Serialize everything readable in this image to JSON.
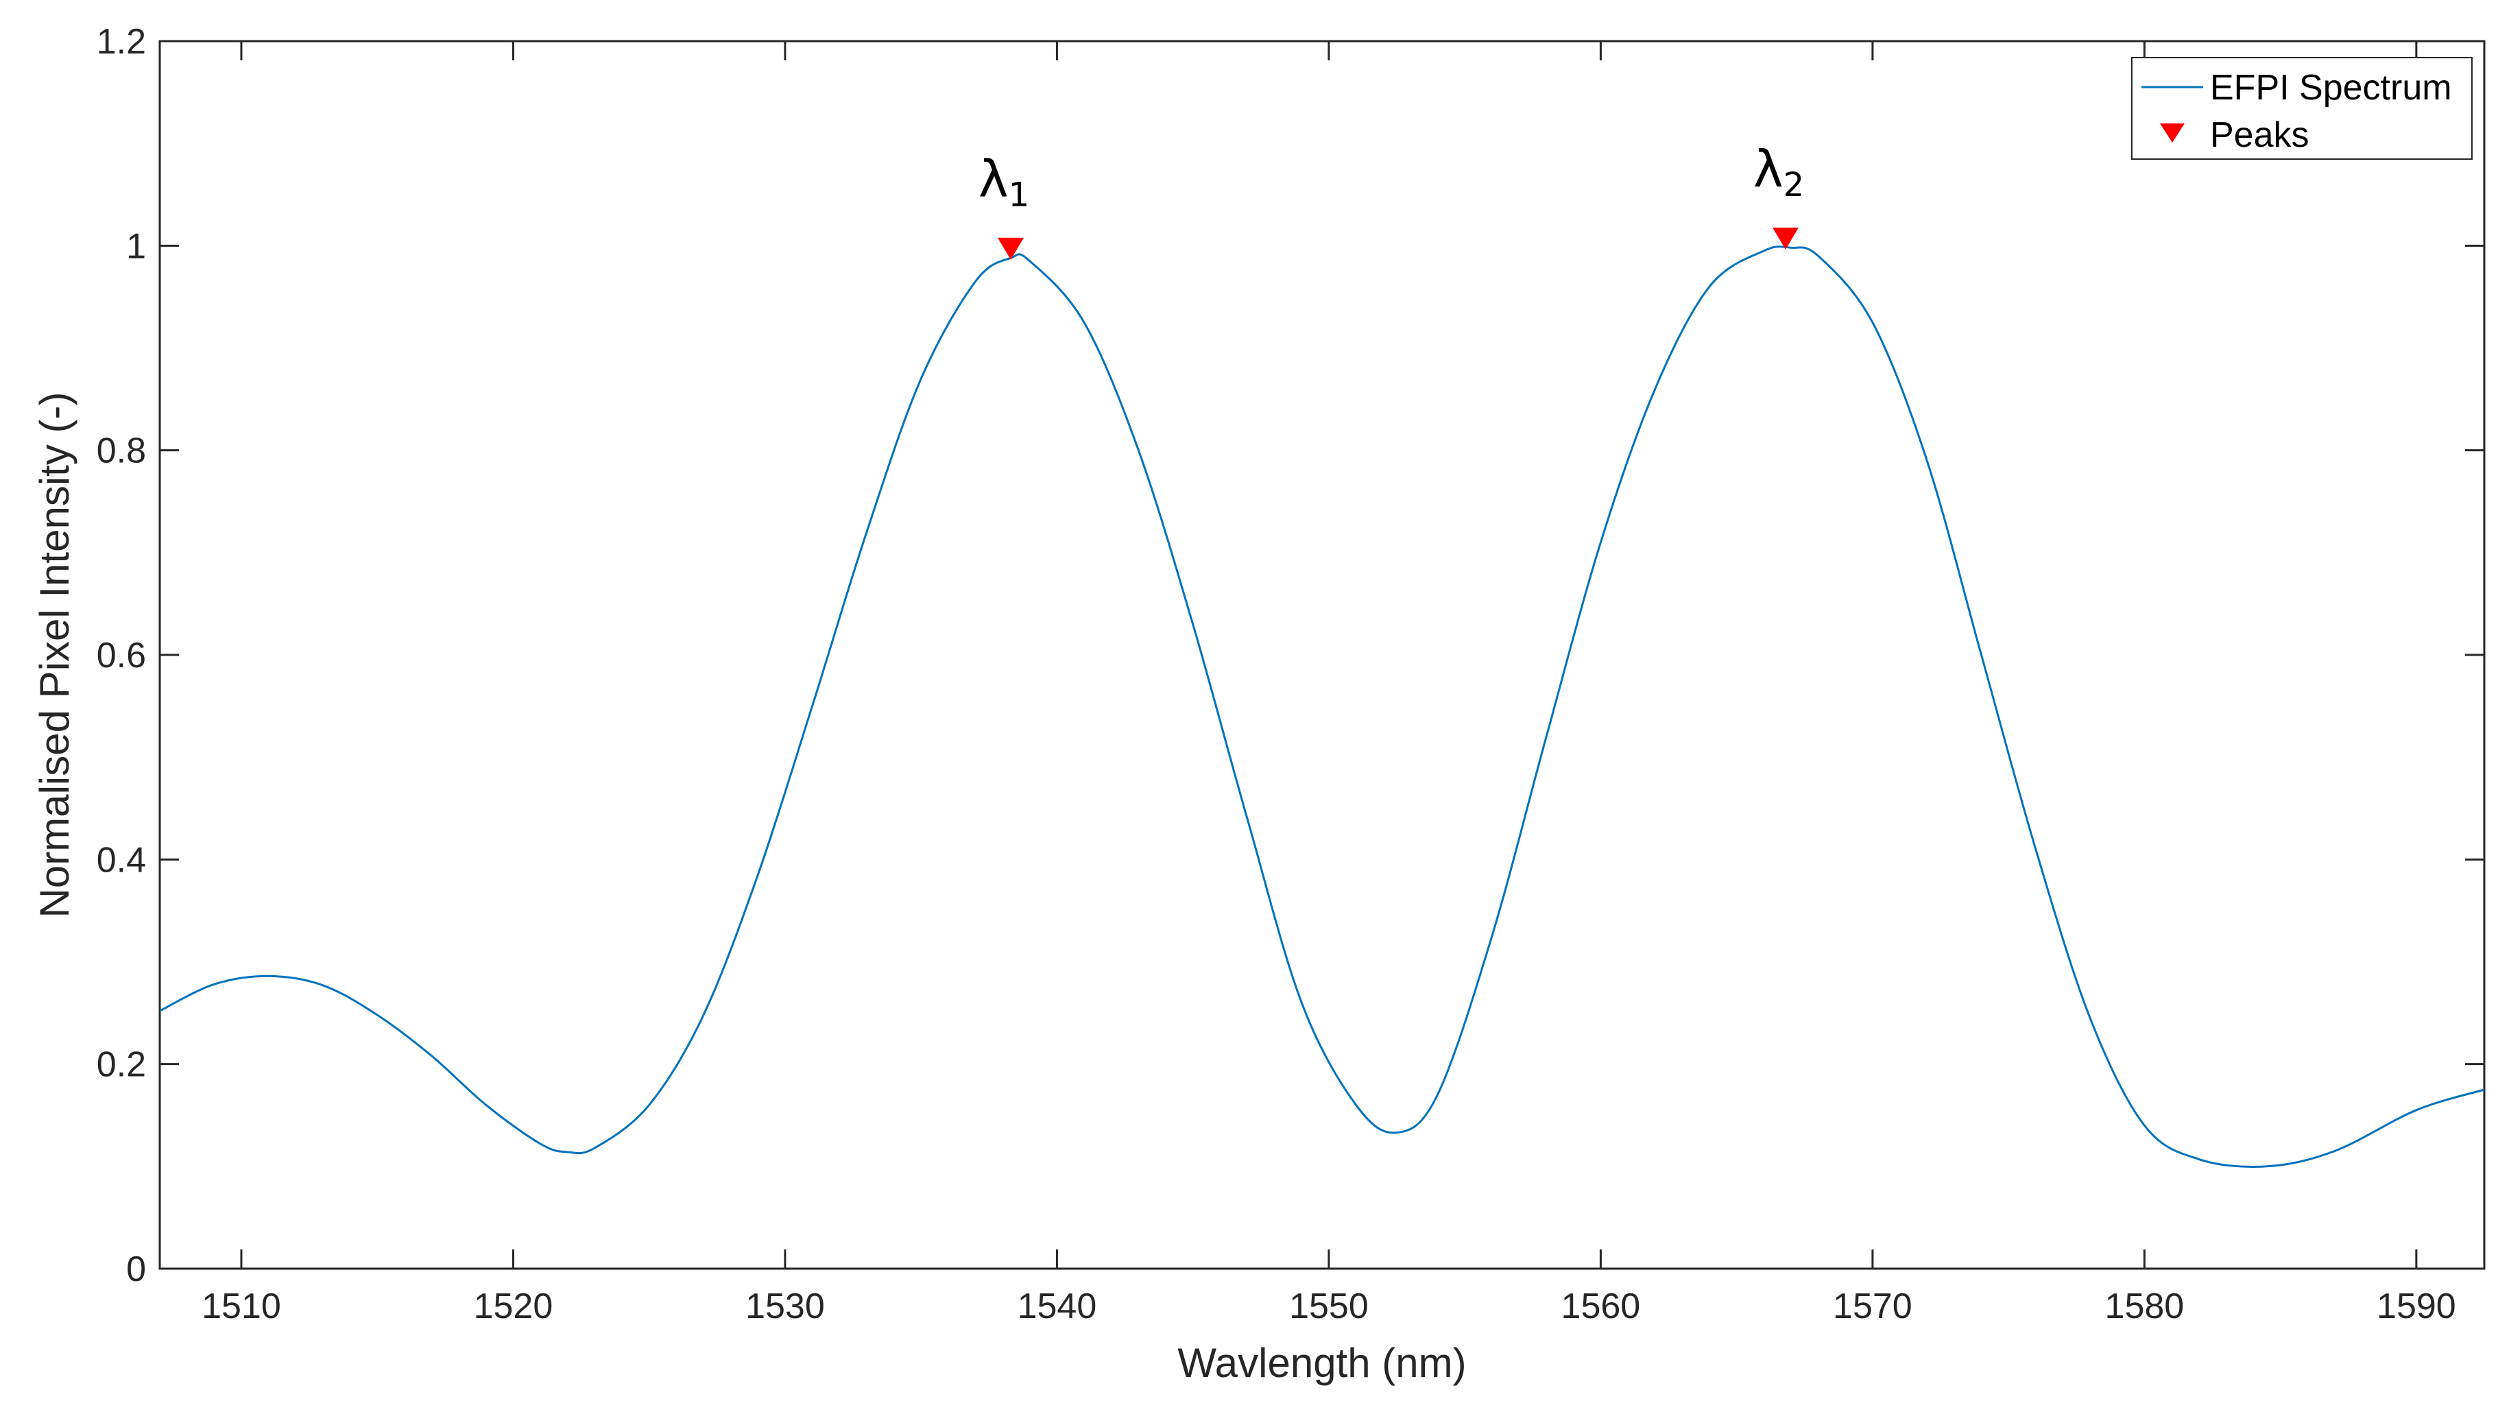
{
  "chart_data": {
    "type": "line",
    "title": "",
    "xlabel": "Wavlength (nm)",
    "ylabel": "Normalised Pixel Intensity (-)",
    "xlim": [
      1507,
      1592.5
    ],
    "ylim": [
      0,
      1.2
    ],
    "xticks": [
      1510,
      1520,
      1530,
      1540,
      1550,
      1560,
      1570,
      1580,
      1590
    ],
    "yticks": [
      0,
      0.2,
      0.4,
      0.6,
      0.8,
      1,
      1.2
    ],
    "xtick_labels": [
      "1510",
      "1520",
      "1530",
      "1540",
      "1550",
      "1560",
      "1570",
      "1580",
      "1590"
    ],
    "ytick_labels": [
      "0",
      "0.2",
      "0.4",
      "0.6",
      "0.8",
      "1",
      "1.2"
    ],
    "grid": false,
    "legend_position": "top-right",
    "series": [
      {
        "name": "EFPI Spectrum",
        "color": "#0072BD",
        "x": [
          1507,
          1509,
          1511,
          1513,
          1515,
          1517,
          1519,
          1521,
          1522,
          1523,
          1525,
          1527,
          1529,
          1531,
          1533,
          1535,
          1537,
          1538.3,
          1539,
          1541,
          1543,
          1545,
          1547,
          1549,
          1551,
          1552.5,
          1554,
          1556,
          1558,
          1560,
          1562,
          1564,
          1566,
          1567,
          1568,
          1570,
          1572,
          1574,
          1576,
          1578,
          1580,
          1582,
          1584.5,
          1587,
          1590,
          1592.5
        ],
        "y": [
          0.252,
          0.278,
          0.286,
          0.277,
          0.248,
          0.208,
          0.16,
          0.122,
          0.114,
          0.118,
          0.16,
          0.248,
          0.385,
          0.55,
          0.72,
          0.87,
          0.965,
          0.988,
          0.985,
          0.925,
          0.8,
          0.63,
          0.44,
          0.26,
          0.16,
          0.133,
          0.17,
          0.325,
          0.52,
          0.71,
          0.86,
          0.96,
          0.995,
          0.998,
          0.99,
          0.925,
          0.79,
          0.6,
          0.41,
          0.245,
          0.14,
          0.107,
          0.1,
          0.115,
          0.155,
          0.175
        ]
      },
      {
        "name": "Peaks",
        "color": "#FF0000",
        "marker": "triangle-down",
        "x": [
          1538.3,
          1566.8
        ],
        "y": [
          0.997,
          1.007
        ]
      }
    ],
    "annotations": [
      {
        "text": "λ",
        "subscript": "1",
        "x": 1538.3,
        "y": 1.048
      },
      {
        "text": "λ",
        "subscript": "2",
        "x": 1566.8,
        "y": 1.058
      }
    ]
  }
}
